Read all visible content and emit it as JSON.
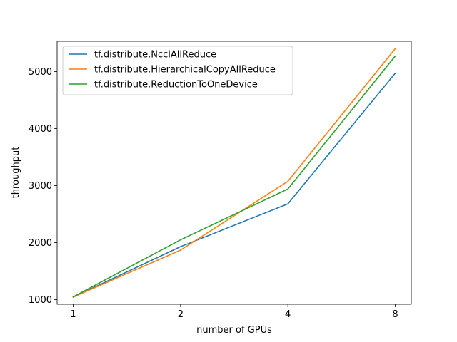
{
  "chart_data": {
    "type": "line",
    "title": "",
    "xlabel": "number of GPUs",
    "ylabel": "throughput",
    "x": [
      "1",
      "2",
      "4",
      "8"
    ],
    "xlim": [
      -0.15,
      3.15
    ],
    "ylim": [
      920,
      5530
    ],
    "yticks": [
      1000,
      2000,
      3000,
      4000,
      5000
    ],
    "grid": false,
    "legend": "top-left",
    "series": [
      {
        "name": "tf.distribute.NcclAllReduce",
        "color": "#1f77b4",
        "values": [
          1045,
          1930,
          2680,
          4970
        ]
      },
      {
        "name": "tf.distribute.HierarchicalCopyAllReduce",
        "color": "#ff7f0e",
        "values": [
          1045,
          1870,
          3075,
          5400
        ]
      },
      {
        "name": "tf.distribute.ReductionToOneDevice",
        "color": "#2ca02c",
        "values": [
          1050,
          2050,
          2940,
          5270
        ]
      }
    ]
  }
}
